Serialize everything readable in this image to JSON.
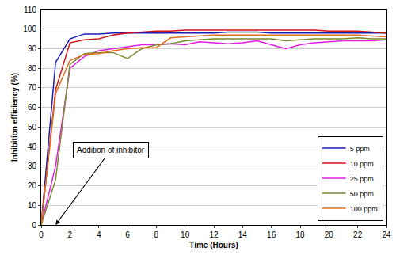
{
  "chart_data": {
    "type": "line",
    "x_label": "Time (Hours)",
    "y_label": "Inhibition efficiency (%)",
    "x": [
      0,
      1,
      2,
      3,
      4,
      5,
      6,
      7,
      8,
      9,
      10,
      11,
      12,
      13,
      14,
      15,
      16,
      17,
      18,
      19,
      20,
      21,
      22,
      23,
      24
    ],
    "series": [
      {
        "name": "5 ppm",
        "color": "#1c1cb8",
        "values": [
          0,
          83,
          95,
          97.5,
          97.5,
          98,
          98,
          98,
          98,
          98,
          98,
          98,
          98,
          98.5,
          98.5,
          98.5,
          98,
          98,
          98,
          98,
          98,
          98,
          98,
          98,
          98
        ]
      },
      {
        "name": "10 ppm",
        "color": "#d01515",
        "values": [
          0,
          69,
          93,
          94.5,
          95,
          97,
          98,
          98.5,
          99,
          99,
          99.5,
          99.5,
          99.5,
          99.5,
          99.5,
          99.5,
          99.5,
          99.5,
          99.5,
          99.5,
          99,
          99,
          99,
          98.5,
          98
        ]
      },
      {
        "name": "25 ppm",
        "color": "#e020e0",
        "values": [
          0,
          30,
          80,
          86,
          89,
          90,
          91,
          92,
          92,
          92.5,
          92,
          93.5,
          93,
          92.5,
          93,
          94,
          92,
          90,
          92,
          93,
          93.5,
          94,
          94,
          94,
          94.5
        ]
      },
      {
        "name": "50 ppm",
        "color": "#7a8a30",
        "values": [
          0,
          23,
          82,
          87.5,
          88,
          88,
          85,
          90,
          92,
          92.5,
          94,
          94.5,
          95,
          95,
          95,
          95,
          95,
          94,
          94.5,
          95,
          95,
          95,
          95.5,
          95,
          95
        ]
      },
      {
        "name": "100 ppm",
        "color": "#e07020",
        "values": [
          0,
          67,
          84,
          87,
          87.5,
          89,
          90,
          90.5,
          90.5,
          95.5,
          96,
          96.5,
          97,
          97,
          97,
          97,
          97,
          97,
          97,
          97,
          97,
          97,
          97,
          96.5,
          96
        ]
      }
    ],
    "xlim": [
      0,
      24
    ],
    "xticks": [
      0,
      2,
      4,
      6,
      8,
      10,
      12,
      14,
      16,
      18,
      20,
      22,
      24
    ],
    "ylim": [
      0,
      110
    ],
    "yticks": [
      0,
      10,
      20,
      30,
      40,
      50,
      60,
      70,
      80,
      90,
      100,
      110
    ],
    "grid": true,
    "legend": "lower right",
    "annotations": [
      {
        "text": "Addition of inhibitor",
        "x": 1,
        "y": 0
      }
    ]
  }
}
